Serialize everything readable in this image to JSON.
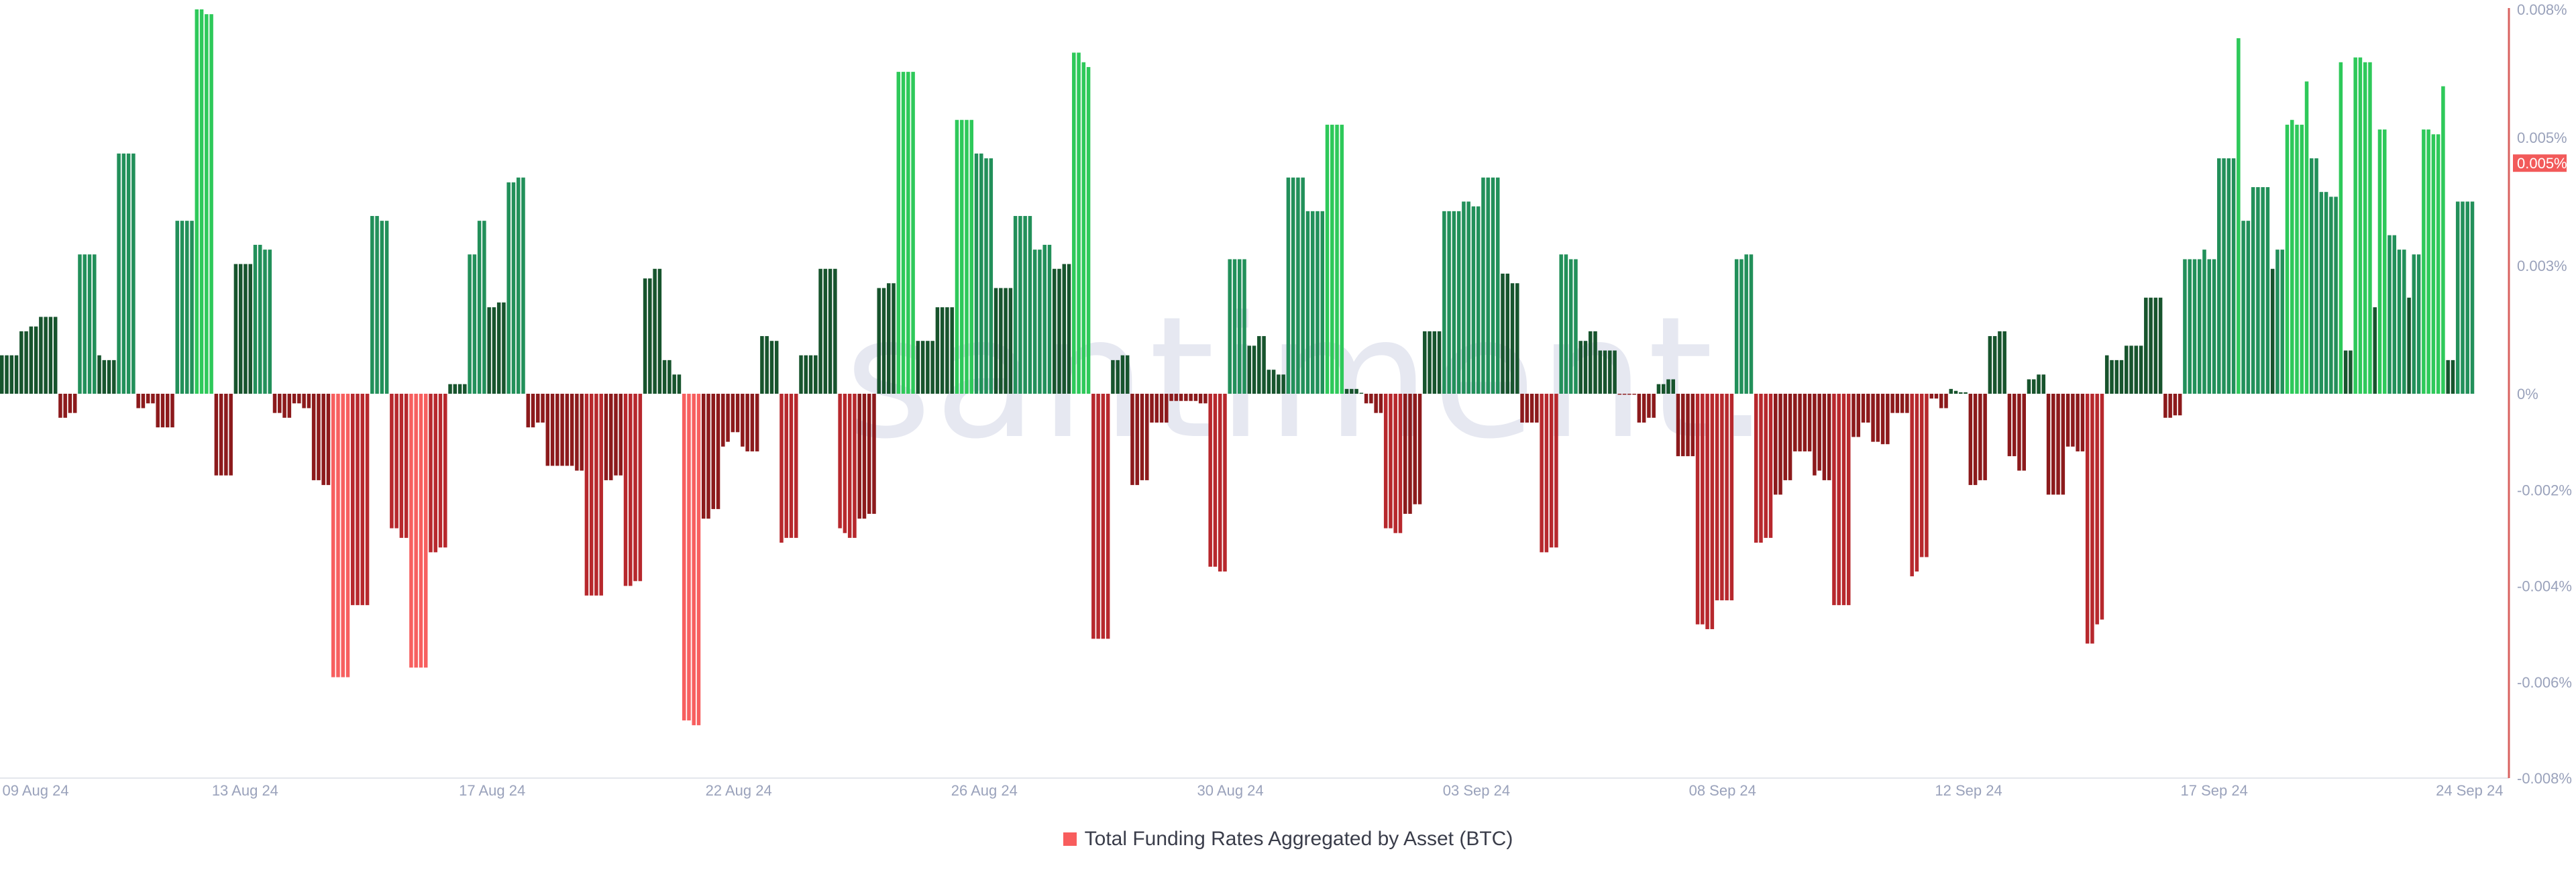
{
  "watermark": "santiment.",
  "legend": {
    "label": "Total Funding Rates Aggregated by Asset (BTC)",
    "color": "#f85d5d"
  },
  "colors": {
    "pos_dark": "#17542d",
    "pos_mid": "#22905a",
    "pos_light": "#2ec95a",
    "neg_dark": "#8c1a1c",
    "neg_mid": "#b7282d",
    "neg_light": "#f75f5f",
    "axis_line": "#d8625f",
    "badge": "#f25a5a"
  },
  "chart_data": {
    "type": "bar",
    "title": "",
    "xlabel": "",
    "ylabel": "",
    "ylim": [
      -0.008,
      0.008
    ],
    "y_unit": "%",
    "grid": false,
    "legend_position": "bottom",
    "x_tick_labels": [
      "09 Aug 24",
      "13 Aug 24",
      "17 Aug 24",
      "22 Aug 24",
      "26 Aug 24",
      "30 Aug 24",
      "03 Sep 24",
      "08 Sep 24",
      "12 Sep 24",
      "17 Sep 24",
      "24 Sep 24"
    ],
    "y_ticks": [
      {
        "value": 0.008,
        "label": "0.008%"
      },
      {
        "value": 0.00533,
        "label": "0.005%"
      },
      {
        "value": 0.00267,
        "label": "0.003%"
      },
      {
        "value": 0,
        "label": "0%"
      },
      {
        "value": -0.002,
        "label": "-0.002%"
      },
      {
        "value": -0.004,
        "label": "-0.004%"
      },
      {
        "value": -0.006,
        "label": "-0.006%"
      },
      {
        "value": -0.008,
        "label": "-0.008%"
      }
    ],
    "current_value": {
      "value": 0.0048,
      "label": "0.005%"
    },
    "series": [
      {
        "name": "Total Funding Rates Aggregated by Asset (BTC)",
        "values": [
          0.0008,
          0.0008,
          0.0008,
          0.0008,
          0.0013,
          0.0013,
          0.0014,
          0.0014,
          0.0016,
          0.0016,
          0.0016,
          0.0016,
          -0.0005,
          -0.0005,
          -0.0004,
          -0.0004,
          0.0029,
          0.0029,
          0.0029,
          0.0029,
          0.0008,
          0.0007,
          0.0007,
          0.0007,
          0.005,
          0.005,
          0.005,
          0.005,
          -0.0003,
          -0.0003,
          -0.0002,
          -0.0002,
          -0.0007,
          -0.0007,
          -0.0007,
          -0.0007,
          0.0036,
          0.0036,
          0.0036,
          0.0036,
          0.008,
          0.008,
          0.0079,
          0.0079,
          -0.0017,
          -0.0017,
          -0.0017,
          -0.0017,
          0.0027,
          0.0027,
          0.0027,
          0.0027,
          0.0031,
          0.0031,
          0.003,
          0.003,
          -0.0004,
          -0.0004,
          -0.0005,
          -0.0005,
          -0.0002,
          -0.0002,
          -0.0003,
          -0.0003,
          -0.0018,
          -0.0018,
          -0.0019,
          -0.0019,
          -0.0059,
          -0.0059,
          -0.0059,
          -0.0059,
          -0.0044,
          -0.0044,
          -0.0044,
          -0.0044,
          0.0037,
          0.0037,
          0.0036,
          0.0036,
          -0.0028,
          -0.0028,
          -0.003,
          -0.003,
          -0.0057,
          -0.0057,
          -0.0057,
          -0.0057,
          -0.0033,
          -0.0033,
          -0.0032,
          -0.0032,
          0.0002,
          0.0002,
          0.0002,
          0.0002,
          0.0029,
          0.0029,
          0.0036,
          0.0036,
          0.0018,
          0.0018,
          0.0019,
          0.0019,
          0.0044,
          0.0044,
          0.0045,
          0.0045,
          -0.0007,
          -0.0007,
          -0.0006,
          -0.0006,
          -0.0015,
          -0.0015,
          -0.0015,
          -0.0015,
          -0.0015,
          -0.0015,
          -0.0016,
          -0.0016,
          -0.0042,
          -0.0042,
          -0.0042,
          -0.0042,
          -0.0018,
          -0.0018,
          -0.0017,
          -0.0017,
          -0.004,
          -0.004,
          -0.0039,
          -0.0039,
          0.0024,
          0.0024,
          0.0026,
          0.0026,
          0.0007,
          0.0007,
          0.0004,
          0.0004,
          -0.0068,
          -0.0068,
          -0.0069,
          -0.0069,
          -0.0026,
          -0.0026,
          -0.0024,
          -0.0024,
          -0.0011,
          -0.001,
          -0.0008,
          -0.0008,
          -0.0011,
          -0.0012,
          -0.0012,
          -0.0012,
          0.0012,
          0.0012,
          0.0011,
          0.0011,
          -0.0031,
          -0.003,
          -0.003,
          -0.003,
          0.0008,
          0.0008,
          0.0008,
          0.0008,
          0.0026,
          0.0026,
          0.0026,
          0.0026,
          -0.0028,
          -0.0029,
          -0.003,
          -0.003,
          -0.0026,
          -0.0026,
          -0.0025,
          -0.0025,
          0.0022,
          0.0022,
          0.0023,
          0.0023,
          0.0067,
          0.0067,
          0.0067,
          0.0067,
          0.0011,
          0.0011,
          0.0011,
          0.0011,
          0.0018,
          0.0018,
          0.0018,
          0.0018,
          0.0057,
          0.0057,
          0.0057,
          0.0057,
          0.005,
          0.005,
          0.0049,
          0.0049,
          0.0022,
          0.0022,
          0.0022,
          0.0022,
          0.0037,
          0.0037,
          0.0037,
          0.0037,
          0.003,
          0.003,
          0.0031,
          0.0031,
          0.0026,
          0.0026,
          0.0027,
          0.0027,
          0.0071,
          0.0071,
          0.0069,
          0.0068,
          -0.0051,
          -0.0051,
          -0.0051,
          -0.0051,
          0.0007,
          0.0007,
          0.0008,
          0.0008,
          -0.0019,
          -0.0019,
          -0.0018,
          -0.0018,
          -0.0006,
          -0.0006,
          -0.0006,
          -0.0006,
          -0.00015,
          -0.00015,
          -0.00015,
          -0.00015,
          -0.00015,
          -0.00015,
          -0.0002,
          -0.0002,
          -0.0036,
          -0.0036,
          -0.0037,
          -0.0037,
          0.0028,
          0.0028,
          0.0028,
          0.0028,
          0.001,
          0.001,
          0.0012,
          0.0012,
          0.0005,
          0.0005,
          0.0004,
          0.0004,
          0.0045,
          0.0045,
          0.0045,
          0.0045,
          0.0038,
          0.0038,
          0.0038,
          0.0038,
          0.0056,
          0.0056,
          0.0056,
          0.0056,
          0.0001,
          0.0001,
          0.0001,
          2e-05,
          -0.0002,
          -0.0002,
          -0.0004,
          -0.0004,
          -0.0028,
          -0.0028,
          -0.0029,
          -0.0029,
          -0.0025,
          -0.0025,
          -0.0023,
          -0.0023,
          0.0013,
          0.0013,
          0.0013,
          0.0013,
          0.0038,
          0.0038,
          0.0038,
          0.0038,
          0.004,
          0.004,
          0.0039,
          0.0039,
          0.0045,
          0.0045,
          0.0045,
          0.0045,
          0.0025,
          0.0025,
          0.0023,
          0.0023,
          -0.0006,
          -0.0006,
          -0.0006,
          -0.0006,
          -0.0033,
          -0.0033,
          -0.0032,
          -0.0032,
          0.0029,
          0.0029,
          0.0028,
          0.0028,
          0.0011,
          0.0011,
          0.0013,
          0.0013,
          0.0009,
          0.0009,
          0.0009,
          0.0009,
          -2e-05,
          -2e-05,
          -2e-05,
          -2e-05,
          -0.0006,
          -0.0006,
          -0.0005,
          -0.0005,
          0.0002,
          0.0002,
          0.0003,
          0.0003,
          -0.0013,
          -0.0013,
          -0.0013,
          -0.0013,
          -0.0048,
          -0.0048,
          -0.0049,
          -0.0049,
          -0.0043,
          -0.0043,
          -0.0043,
          -0.0043,
          0.0028,
          0.0028,
          0.0029,
          0.0029,
          -0.0031,
          -0.0031,
          -0.003,
          -0.003,
          -0.0021,
          -0.0021,
          -0.0018,
          -0.0018,
          -0.0012,
          -0.0012,
          -0.0012,
          -0.0012,
          -0.0017,
          -0.0016,
          -0.0018,
          -0.0018,
          -0.0044,
          -0.0044,
          -0.0044,
          -0.0044,
          -0.0009,
          -0.0009,
          -0.0006,
          -0.0006,
          -0.001,
          -0.001,
          -0.00105,
          -0.00105,
          -0.0004,
          -0.0004,
          -0.0004,
          -0.0004,
          -0.0038,
          -0.0037,
          -0.0034,
          -0.0034,
          -0.0001,
          -0.0001,
          -0.0003,
          -0.0003,
          0.0001,
          6e-05,
          3e-05,
          3e-05,
          -0.0019,
          -0.0019,
          -0.0018,
          -0.0018,
          0.0012,
          0.0012,
          0.0013,
          0.0013,
          -0.0013,
          -0.0013,
          -0.0016,
          -0.0016,
          0.0003,
          0.0003,
          0.0004,
          0.0004,
          -0.0021,
          -0.0021,
          -0.0021,
          -0.0021,
          -0.0011,
          -0.0011,
          -0.0012,
          -0.0012,
          -0.0052,
          -0.0052,
          -0.0048,
          -0.0047,
          0.0008,
          0.0007,
          0.0007,
          0.0007,
          0.001,
          0.001,
          0.001,
          0.001,
          0.002,
          0.002,
          0.002,
          0.002,
          -0.0005,
          -0.0005,
          -0.00045,
          -0.00045,
          0.0028,
          0.0028,
          0.0028,
          0.0028,
          0.003,
          0.0028,
          0.0028,
          0.0049,
          0.0049,
          0.0049,
          0.0049,
          0.0074,
          0.0036,
          0.0036,
          0.0043,
          0.0043,
          0.0043,
          0.0043,
          0.0026,
          0.003,
          0.003,
          0.0056,
          0.0057,
          0.0056,
          0.0056,
          0.0065,
          0.0049,
          0.0049,
          0.0042,
          0.0042,
          0.0041,
          0.0041,
          0.0069,
          0.0009,
          0.0009,
          0.007,
          0.007,
          0.0069,
          0.0069,
          0.0018,
          0.0055,
          0.0055,
          0.0033,
          0.0033,
          0.003,
          0.003,
          0.002,
          0.0029,
          0.0029,
          0.0055,
          0.0055,
          0.0054,
          0.0054,
          0.0064,
          0.0007,
          0.0007,
          0.004,
          0.004,
          0.004,
          0.004
        ]
      }
    ]
  }
}
